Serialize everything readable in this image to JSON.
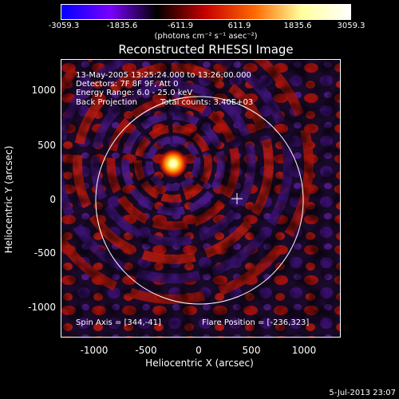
{
  "colorbar": {
    "ticks": [
      "-3059.3",
      "-1835.6",
      "-611.9",
      "611.9",
      "1835.6",
      "3059.3"
    ],
    "units": "(photons cm⁻² s⁻¹ asec⁻²)",
    "colors": [
      "#0000ff",
      "#7a00ff",
      "#000000",
      "#c80000",
      "#ff6a00",
      "#ffff9a",
      "#ffffff"
    ]
  },
  "title": "Reconstructed RHESSI Image",
  "info": {
    "time": "13-May-2005 13:25:24.000 to 13:26:00.000",
    "detectors": "Detectors: 7F 8F 9F, Att 0",
    "energy": "Energy Range: 6.0 - 25.0 keV",
    "method": "Back Projection",
    "counts": "Total counts: 3.40E+03",
    "spin_axis": "Spin Axis = [344,-41]",
    "flare_position": "Flare Position = [-236,323]"
  },
  "axes": {
    "xlabel": "Heliocentric X (arcsec)",
    "ylabel": "Heliocentric Y (arcsec)",
    "xticks": [
      "-1000",
      "-500",
      "0",
      "500",
      "1000"
    ],
    "yticks": [
      "1000",
      "500",
      "0",
      "-500",
      "-1000"
    ]
  },
  "datestamp": "5-Jul-2013 23:07"
}
